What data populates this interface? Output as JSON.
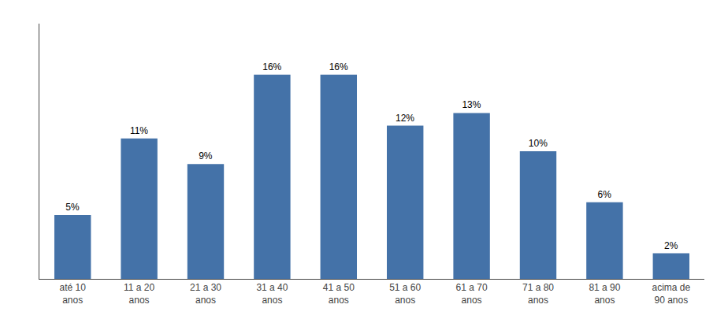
{
  "chart_data": {
    "type": "bar",
    "categories": [
      "até 10\nanos",
      "11 a 20\nanos",
      "21 a 30\nanos",
      "31 a 40\nanos",
      "41 a 50\nanos",
      "51 a 60\nanos",
      "61 a 70\nanos",
      "71 a 80\nanos",
      "81 a 90\nanos",
      "acima de\n90 anos"
    ],
    "values": [
      5,
      11,
      9,
      16,
      16,
      12,
      13,
      10,
      6,
      2
    ],
    "value_labels": [
      "5%",
      "11%",
      "9%",
      "16%",
      "16%",
      "12%",
      "13%",
      "10%",
      "6%",
      "2%"
    ],
    "data_labels": true,
    "color": "#4472a8",
    "ylim": [
      0,
      20
    ],
    "yticks": [],
    "tick_labels": "x",
    "grid": false
  }
}
